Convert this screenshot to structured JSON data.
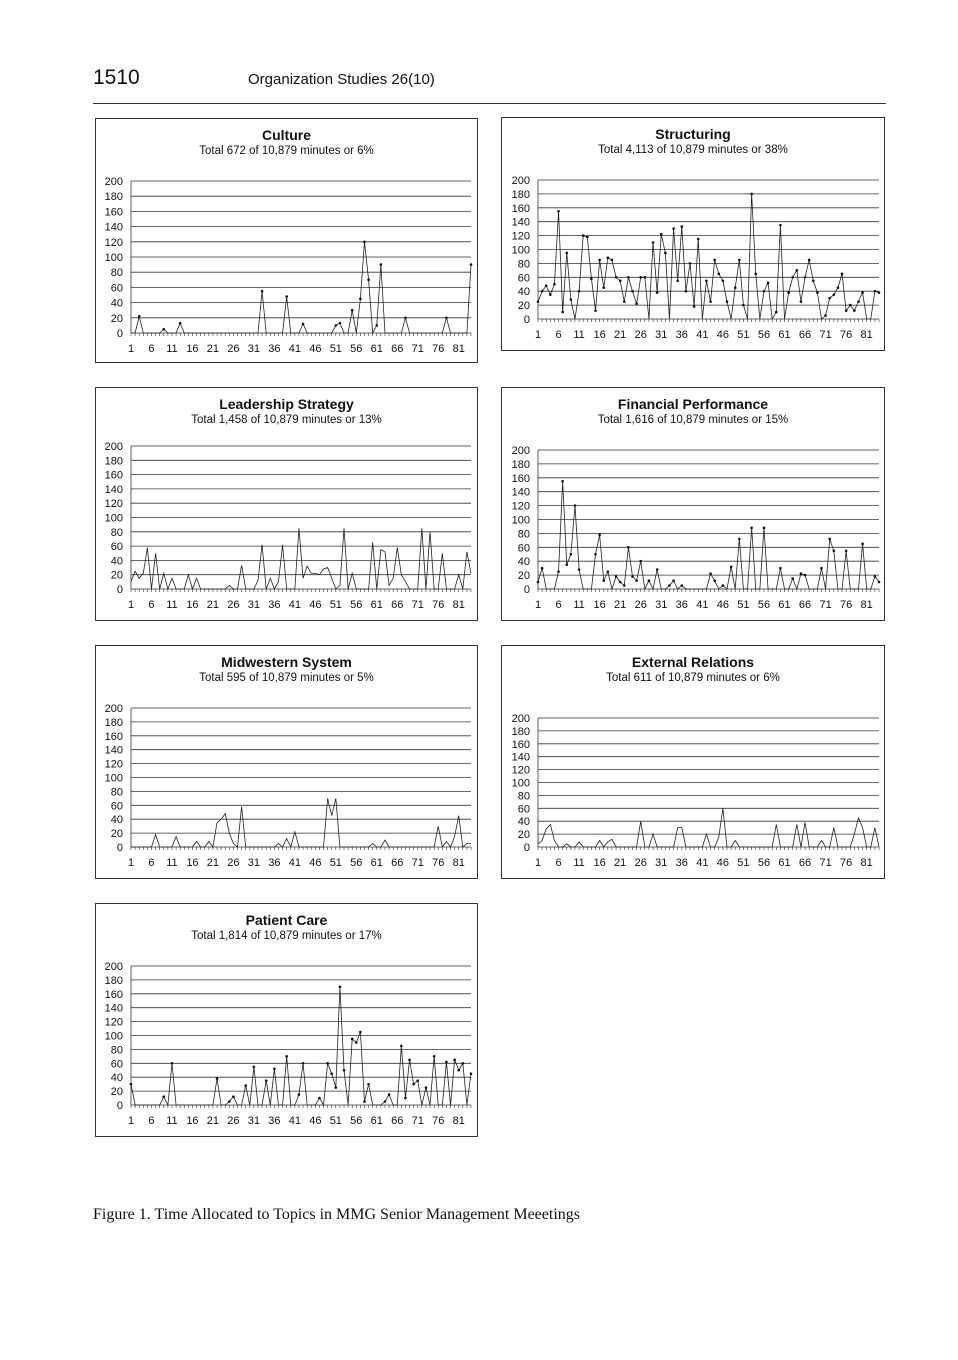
{
  "header": {
    "page_number": "1510",
    "journal_title": "Organization Studies 26(10)"
  },
  "caption": "Figure 1. Time Allocated to Topics in MMG Senior Management Meeetings",
  "chart_data": [
    {
      "type": "line",
      "title": "Culture",
      "subtitle": "Total 672 of 10,879 minutes or 6%",
      "ylim": [
        0,
        200
      ],
      "yticks": [
        0,
        20,
        40,
        60,
        80,
        100,
        120,
        140,
        160,
        180,
        200
      ],
      "x_tick_labels": [
        "1",
        "6",
        "11",
        "16",
        "21",
        "26",
        "31",
        "36",
        "41",
        "46",
        "51",
        "56",
        "61",
        "66",
        "71",
        "76",
        "81"
      ],
      "grid": true,
      "markers": true,
      "x": [
        1,
        2,
        3,
        4,
        5,
        6,
        7,
        8,
        9,
        10,
        11,
        12,
        13,
        14,
        15,
        16,
        17,
        18,
        19,
        20,
        21,
        22,
        23,
        24,
        25,
        26,
        27,
        28,
        29,
        30,
        31,
        32,
        33,
        34,
        35,
        36,
        37,
        38,
        39,
        40,
        41,
        42,
        43,
        44,
        45,
        46,
        47,
        48,
        49,
        50,
        51,
        52,
        53,
        54,
        55,
        56,
        57,
        58,
        59,
        60,
        61,
        62,
        63,
        64,
        65,
        66,
        67,
        68,
        69,
        70,
        71,
        72,
        73,
        74,
        75,
        76,
        77,
        78,
        79,
        80,
        81,
        82,
        83,
        84
      ],
      "values": [
        0,
        0,
        22,
        0,
        0,
        0,
        0,
        0,
        5,
        0,
        0,
        0,
        13,
        0,
        0,
        0,
        0,
        0,
        0,
        0,
        0,
        0,
        0,
        0,
        0,
        0,
        0,
        0,
        0,
        0,
        0,
        0,
        55,
        0,
        0,
        0,
        0,
        0,
        48,
        0,
        0,
        0,
        12,
        0,
        0,
        0,
        0,
        0,
        0,
        0,
        10,
        13,
        0,
        0,
        30,
        0,
        45,
        120,
        70,
        0,
        10,
        90,
        0,
        0,
        0,
        0,
        0,
        20,
        0,
        0,
        0,
        0,
        0,
        0,
        0,
        0,
        0,
        20,
        0,
        0,
        0,
        0,
        0,
        90
      ]
    },
    {
      "type": "line",
      "title": "Structuring",
      "subtitle": "Total 4,113 of 10,879 minutes or 38%",
      "ylim": [
        0,
        200
      ],
      "yticks": [
        0,
        20,
        40,
        60,
        80,
        100,
        120,
        140,
        160,
        180,
        200
      ],
      "x_tick_labels": [
        "1",
        "6",
        "11",
        "16",
        "21",
        "26",
        "31",
        "36",
        "41",
        "46",
        "51",
        "56",
        "61",
        "66",
        "71",
        "76",
        "81"
      ],
      "grid": true,
      "markers": true,
      "x": [
        1,
        2,
        3,
        4,
        5,
        6,
        7,
        8,
        9,
        10,
        11,
        12,
        13,
        14,
        15,
        16,
        17,
        18,
        19,
        20,
        21,
        22,
        23,
        24,
        25,
        26,
        27,
        28,
        29,
        30,
        31,
        32,
        33,
        34,
        35,
        36,
        37,
        38,
        39,
        40,
        41,
        42,
        43,
        44,
        45,
        46,
        47,
        48,
        49,
        50,
        51,
        52,
        53,
        54,
        55,
        56,
        57,
        58,
        59,
        60,
        61,
        62,
        63,
        64,
        65,
        66,
        67,
        68,
        69,
        70,
        71,
        72,
        73,
        74,
        75,
        76,
        77,
        78,
        79,
        80,
        81,
        82,
        83,
        84
      ],
      "values": [
        25,
        40,
        48,
        35,
        50,
        155,
        10,
        95,
        28,
        0,
        40,
        120,
        118,
        58,
        12,
        85,
        45,
        88,
        85,
        60,
        55,
        25,
        60,
        40,
        22,
        60,
        60,
        0,
        110,
        38,
        122,
        95,
        0,
        130,
        55,
        133,
        40,
        80,
        18,
        115,
        0,
        55,
        25,
        85,
        65,
        55,
        25,
        0,
        45,
        85,
        20,
        0,
        180,
        65,
        0,
        40,
        52,
        0,
        10,
        135,
        0,
        38,
        60,
        70,
        25,
        60,
        85,
        55,
        38,
        0,
        5,
        30,
        35,
        45,
        65,
        12,
        20,
        12,
        25,
        38,
        0,
        0,
        40,
        38
      ]
    },
    {
      "type": "line",
      "title": "Leadership Strategy",
      "subtitle": "Total 1,458 of 10,879 minutes or 13%",
      "ylim": [
        0,
        200
      ],
      "yticks": [
        0,
        20,
        40,
        60,
        80,
        100,
        120,
        140,
        160,
        180,
        200
      ],
      "x_tick_labels": [
        "1",
        "6",
        "11",
        "16",
        "21",
        "26",
        "31",
        "36",
        "41",
        "46",
        "51",
        "56",
        "61",
        "66",
        "71",
        "76",
        "81"
      ],
      "grid": true,
      "markers": false,
      "x": [
        1,
        2,
        3,
        4,
        5,
        6,
        7,
        8,
        9,
        10,
        11,
        12,
        13,
        14,
        15,
        16,
        17,
        18,
        19,
        20,
        21,
        22,
        23,
        24,
        25,
        26,
        27,
        28,
        29,
        30,
        31,
        32,
        33,
        34,
        35,
        36,
        37,
        38,
        39,
        40,
        41,
        42,
        43,
        44,
        45,
        46,
        47,
        48,
        49,
        50,
        51,
        52,
        53,
        54,
        55,
        56,
        57,
        58,
        59,
        60,
        61,
        62,
        63,
        64,
        65,
        66,
        67,
        68,
        69,
        70,
        71,
        72,
        73,
        74,
        75,
        76,
        77,
        78,
        79,
        80,
        81,
        82,
        83,
        84
      ],
      "values": [
        10,
        25,
        15,
        22,
        58,
        0,
        50,
        0,
        22,
        0,
        15,
        0,
        0,
        0,
        20,
        0,
        15,
        0,
        0,
        0,
        0,
        0,
        0,
        0,
        5,
        0,
        0,
        33,
        0,
        0,
        0,
        12,
        62,
        0,
        15,
        0,
        10,
        62,
        0,
        0,
        0,
        85,
        15,
        32,
        22,
        22,
        20,
        28,
        30,
        15,
        0,
        5,
        85,
        0,
        22,
        0,
        0,
        0,
        0,
        65,
        0,
        55,
        52,
        5,
        15,
        58,
        20,
        10,
        0,
        0,
        0,
        85,
        0,
        80,
        0,
        0,
        50,
        0,
        0,
        0,
        20,
        0,
        52,
        22
      ]
    },
    {
      "type": "line",
      "title": "Financial Performance",
      "subtitle": "Total 1,616 of 10,879 minutes or 15%",
      "ylim": [
        0,
        200
      ],
      "yticks": [
        0,
        20,
        40,
        60,
        80,
        100,
        120,
        140,
        160,
        180,
        200
      ],
      "x_tick_labels": [
        "1",
        "6",
        "11",
        "16",
        "21",
        "26",
        "31",
        "36",
        "41",
        "46",
        "51",
        "56",
        "61",
        "66",
        "71",
        "76",
        "81"
      ],
      "grid": true,
      "markers": true,
      "x": [
        1,
        2,
        3,
        4,
        5,
        6,
        7,
        8,
        9,
        10,
        11,
        12,
        13,
        14,
        15,
        16,
        17,
        18,
        19,
        20,
        21,
        22,
        23,
        24,
        25,
        26,
        27,
        28,
        29,
        30,
        31,
        32,
        33,
        34,
        35,
        36,
        37,
        38,
        39,
        40,
        41,
        42,
        43,
        44,
        45,
        46,
        47,
        48,
        49,
        50,
        51,
        52,
        53,
        54,
        55,
        56,
        57,
        58,
        59,
        60,
        61,
        62,
        63,
        64,
        65,
        66,
        67,
        68,
        69,
        70,
        71,
        72,
        73,
        74,
        75,
        76,
        77,
        78,
        79,
        80,
        81,
        82,
        83,
        84
      ],
      "values": [
        10,
        30,
        0,
        0,
        0,
        25,
        155,
        35,
        50,
        120,
        28,
        0,
        0,
        0,
        50,
        78,
        12,
        25,
        0,
        18,
        10,
        5,
        60,
        18,
        12,
        40,
        0,
        12,
        0,
        28,
        0,
        0,
        5,
        12,
        0,
        5,
        0,
        0,
        0,
        0,
        0,
        0,
        22,
        12,
        0,
        5,
        0,
        32,
        0,
        72,
        0,
        0,
        88,
        0,
        0,
        88,
        0,
        0,
        0,
        30,
        0,
        0,
        15,
        0,
        22,
        20,
        0,
        0,
        0,
        30,
        0,
        72,
        55,
        0,
        0,
        55,
        0,
        0,
        0,
        65,
        0,
        0,
        18,
        10
      ]
    },
    {
      "type": "line",
      "title": "Midwestern System",
      "subtitle": "Total 595 of 10,879 minutes or 5%",
      "ylim": [
        0,
        200
      ],
      "yticks": [
        0,
        20,
        40,
        60,
        80,
        100,
        120,
        140,
        160,
        180,
        200
      ],
      "x_tick_labels": [
        "1",
        "6",
        "11",
        "16",
        "21",
        "26",
        "31",
        "36",
        "41",
        "46",
        "51",
        "56",
        "61",
        "66",
        "71",
        "76",
        "81"
      ],
      "grid": true,
      "markers": false,
      "x": [
        1,
        2,
        3,
        4,
        5,
        6,
        7,
        8,
        9,
        10,
        11,
        12,
        13,
        14,
        15,
        16,
        17,
        18,
        19,
        20,
        21,
        22,
        23,
        24,
        25,
        26,
        27,
        28,
        29,
        30,
        31,
        32,
        33,
        34,
        35,
        36,
        37,
        38,
        39,
        40,
        41,
        42,
        43,
        44,
        45,
        46,
        47,
        48,
        49,
        50,
        51,
        52,
        53,
        54,
        55,
        56,
        57,
        58,
        59,
        60,
        61,
        62,
        63,
        64,
        65,
        66,
        67,
        68,
        69,
        70,
        71,
        72,
        73,
        74,
        75,
        76,
        77,
        78,
        79,
        80,
        81,
        82,
        83,
        84
      ],
      "values": [
        0,
        0,
        0,
        0,
        0,
        0,
        18,
        0,
        0,
        0,
        0,
        15,
        0,
        0,
        0,
        0,
        8,
        0,
        0,
        8,
        0,
        35,
        40,
        48,
        20,
        5,
        0,
        58,
        0,
        0,
        0,
        0,
        0,
        0,
        0,
        0,
        5,
        0,
        12,
        0,
        22,
        0,
        0,
        0,
        0,
        0,
        0,
        0,
        70,
        45,
        70,
        0,
        0,
        0,
        0,
        0,
        0,
        0,
        0,
        5,
        0,
        0,
        10,
        0,
        0,
        0,
        0,
        0,
        0,
        0,
        0,
        0,
        0,
        0,
        0,
        30,
        0,
        8,
        0,
        15,
        45,
        0,
        5,
        5
      ]
    },
    {
      "type": "line",
      "title": "External Relations",
      "subtitle": "Total 611 of 10,879 minutes or 6%",
      "ylim": [
        0,
        200
      ],
      "yticks": [
        0,
        20,
        40,
        60,
        80,
        100,
        120,
        140,
        160,
        180,
        200
      ],
      "x_tick_labels": [
        "1",
        "6",
        "11",
        "16",
        "21",
        "26",
        "31",
        "36",
        "41",
        "46",
        "51",
        "56",
        "61",
        "66",
        "71",
        "76",
        "81"
      ],
      "grid": true,
      "markers": false,
      "x": [
        1,
        2,
        3,
        4,
        5,
        6,
        7,
        8,
        9,
        10,
        11,
        12,
        13,
        14,
        15,
        16,
        17,
        18,
        19,
        20,
        21,
        22,
        23,
        24,
        25,
        26,
        27,
        28,
        29,
        30,
        31,
        32,
        33,
        34,
        35,
        36,
        37,
        38,
        39,
        40,
        41,
        42,
        43,
        44,
        45,
        46,
        47,
        48,
        49,
        50,
        51,
        52,
        53,
        54,
        55,
        56,
        57,
        58,
        59,
        60,
        61,
        62,
        63,
        64,
        65,
        66,
        67,
        68,
        69,
        70,
        71,
        72,
        73,
        74,
        75,
        76,
        77,
        78,
        79,
        80,
        81,
        82,
        83,
        84
      ],
      "values": [
        5,
        10,
        28,
        35,
        10,
        0,
        0,
        5,
        0,
        0,
        8,
        0,
        0,
        0,
        0,
        10,
        0,
        8,
        12,
        0,
        0,
        0,
        0,
        0,
        0,
        40,
        0,
        0,
        20,
        0,
        0,
        0,
        0,
        0,
        30,
        30,
        0,
        0,
        0,
        0,
        0,
        20,
        0,
        0,
        15,
        60,
        0,
        0,
        10,
        0,
        0,
        0,
        0,
        0,
        0,
        0,
        0,
        0,
        35,
        0,
        0,
        0,
        0,
        35,
        0,
        38,
        0,
        0,
        0,
        10,
        0,
        0,
        30,
        0,
        0,
        0,
        0,
        20,
        45,
        30,
        0,
        0,
        30,
        0
      ]
    },
    {
      "type": "line",
      "title": "Patient Care",
      "subtitle": "Total 1,814 of 10,879 minutes or 17%",
      "ylim": [
        0,
        200
      ],
      "yticks": [
        0,
        20,
        40,
        60,
        80,
        100,
        120,
        140,
        160,
        180,
        200
      ],
      "x_tick_labels": [
        "1",
        "6",
        "11",
        "16",
        "21",
        "26",
        "31",
        "36",
        "41",
        "46",
        "51",
        "56",
        "61",
        "66",
        "71",
        "76",
        "81"
      ],
      "grid": true,
      "markers": true,
      "x": [
        1,
        2,
        3,
        4,
        5,
        6,
        7,
        8,
        9,
        10,
        11,
        12,
        13,
        14,
        15,
        16,
        17,
        18,
        19,
        20,
        21,
        22,
        23,
        24,
        25,
        26,
        27,
        28,
        29,
        30,
        31,
        32,
        33,
        34,
        35,
        36,
        37,
        38,
        39,
        40,
        41,
        42,
        43,
        44,
        45,
        46,
        47,
        48,
        49,
        50,
        51,
        52,
        53,
        54,
        55,
        56,
        57,
        58,
        59,
        60,
        61,
        62,
        63,
        64,
        65,
        66,
        67,
        68,
        69,
        70,
        71,
        72,
        73,
        74,
        75,
        76,
        77,
        78,
        79,
        80,
        81,
        82,
        83,
        84
      ],
      "values": [
        30,
        0,
        0,
        0,
        0,
        0,
        0,
        0,
        12,
        0,
        60,
        0,
        0,
        0,
        0,
        0,
        0,
        0,
        0,
        0,
        0,
        38,
        0,
        0,
        5,
        12,
        0,
        0,
        28,
        0,
        55,
        0,
        0,
        35,
        0,
        52,
        0,
        0,
        70,
        0,
        0,
        15,
        60,
        0,
        0,
        0,
        10,
        0,
        60,
        45,
        25,
        170,
        50,
        0,
        95,
        90,
        105,
        5,
        30,
        0,
        0,
        0,
        5,
        15,
        0,
        0,
        85,
        10,
        65,
        30,
        35,
        0,
        25,
        0,
        70,
        0,
        0,
        62,
        0,
        65,
        50,
        60,
        0,
        45
      ]
    }
  ]
}
